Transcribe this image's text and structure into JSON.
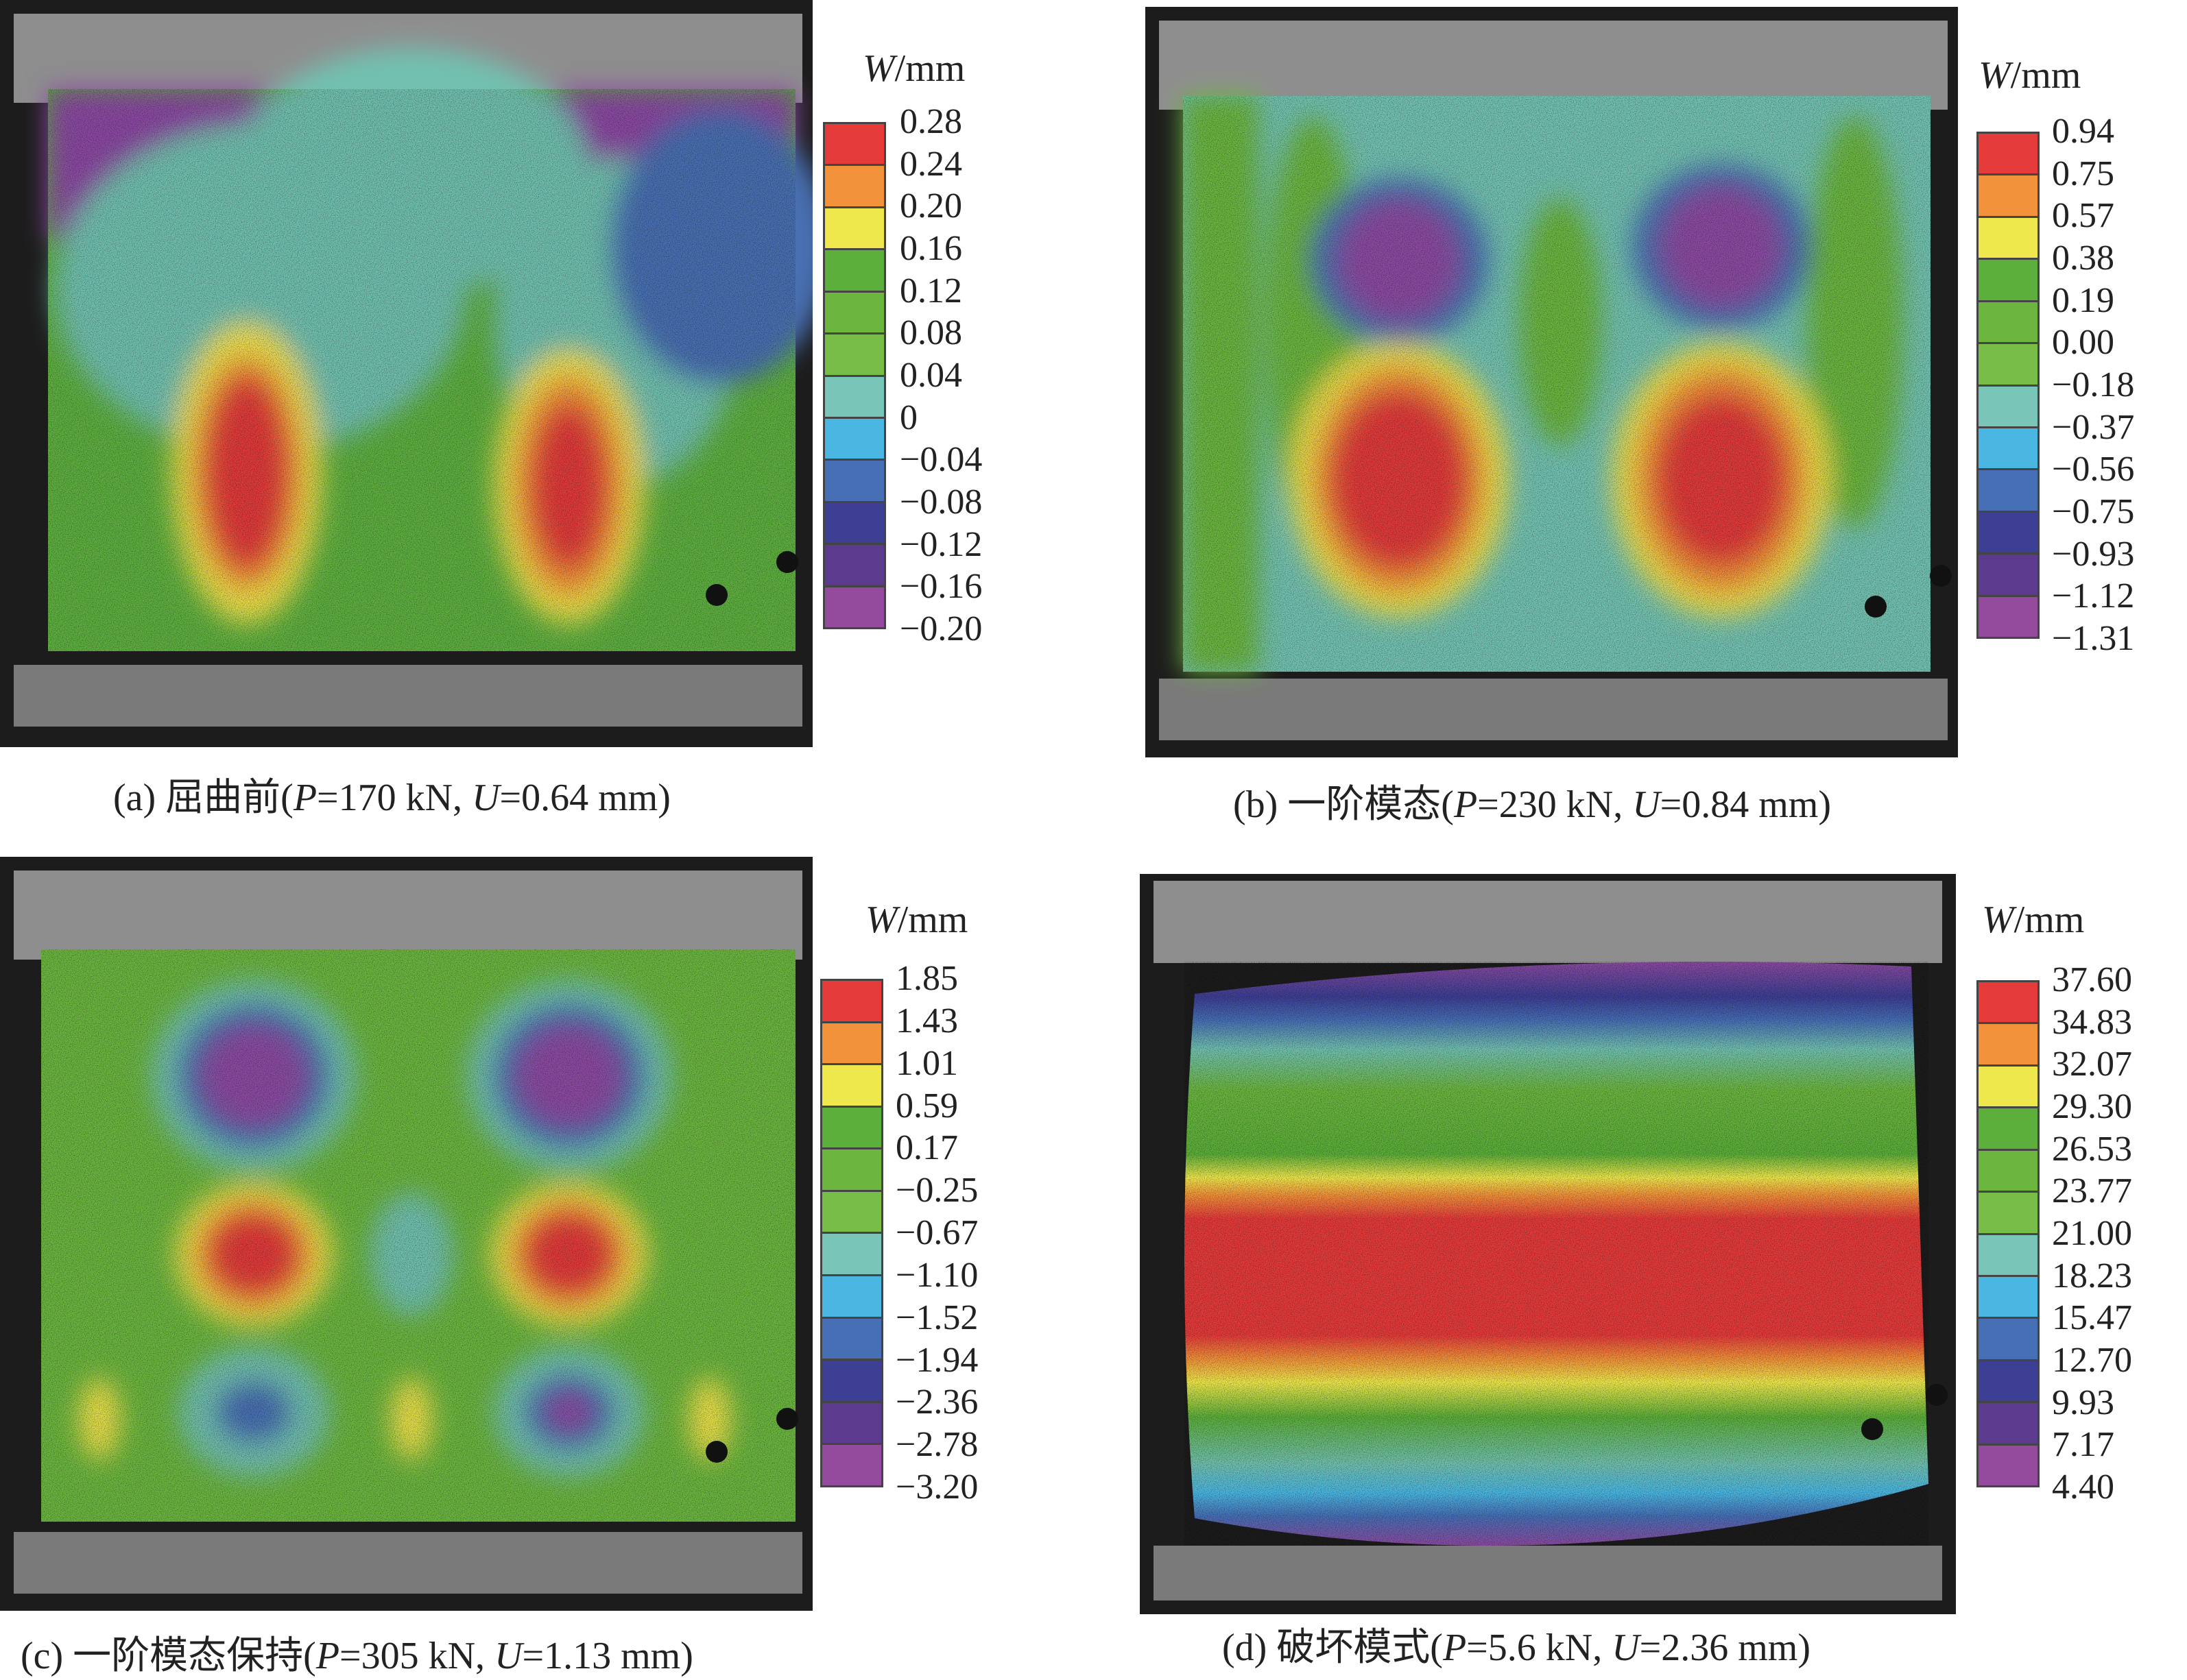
{
  "colors": {
    "scale": [
      "#e53b3b",
      "#f2923a",
      "#efe84c",
      "#5caf3a",
      "#6cb640",
      "#79bd49",
      "#79c6b8",
      "#4ab7e2",
      "#476fb5",
      "#3d3f94",
      "#5c3b8f",
      "#944b9d"
    ]
  },
  "panels": [
    {
      "id": "a",
      "unit_symbol": "W",
      "unit_suffix": "/mm",
      "ticks": [
        "0.28",
        "0.24",
        "0.20",
        "0.16",
        "0.12",
        "0.08",
        "0.04",
        "0",
        "−0.04",
        "−0.08",
        "−0.12",
        "−0.16",
        "−0.20"
      ],
      "caption": {
        "prefix": "(a) 屈曲前(",
        "p_symbol": "P",
        "p_value": "=170 kN, ",
        "u_symbol": "U",
        "u_value": "=0.64 mm)"
      }
    },
    {
      "id": "b",
      "unit_symbol": "W",
      "unit_suffix": "/mm",
      "ticks": [
        "0.94",
        "0.75",
        "0.57",
        "0.38",
        "0.19",
        "0.00",
        "−0.18",
        "−0.37",
        "−0.56",
        "−0.75",
        "−0.93",
        "−1.12",
        "−1.31"
      ],
      "caption": {
        "prefix": "(b) 一阶模态(",
        "p_symbol": "P",
        "p_value": "=230 kN, ",
        "u_symbol": "U",
        "u_value": "=0.84 mm)"
      }
    },
    {
      "id": "c",
      "unit_symbol": "W",
      "unit_suffix": "/mm",
      "ticks": [
        "1.85",
        "1.43",
        "1.01",
        "0.59",
        "0.17",
        "−0.25",
        "−0.67",
        "−1.10",
        "−1.52",
        "−1.94",
        "−2.36",
        "−2.78",
        "−3.20"
      ],
      "caption": {
        "prefix": "(c) 一阶模态保持(",
        "p_symbol": "P",
        "p_value": "=305 kN, ",
        "u_symbol": "U",
        "u_value": "=1.13 mm)"
      }
    },
    {
      "id": "d",
      "unit_symbol": "W",
      "unit_suffix": "/mm",
      "ticks": [
        "37.60",
        "34.83",
        "32.07",
        "29.30",
        "26.53",
        "23.77",
        "21.00",
        "18.23",
        "15.47",
        "12.70",
        "9.93",
        "7.17",
        "4.40"
      ],
      "caption": {
        "prefix": "(d) 破坏模式(",
        "p_symbol": "P",
        "p_value": "=5.6 kN, ",
        "u_symbol": "U",
        "u_value": "=2.36 mm)"
      }
    }
  ]
}
